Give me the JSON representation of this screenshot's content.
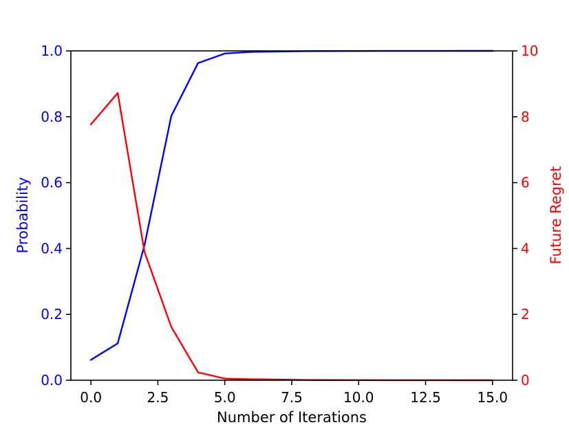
{
  "chart_data": {
    "type": "line",
    "xlabel": "Number of Iterations",
    "ylabel_left": "Probability",
    "ylabel_right": "Future Regret",
    "xlim": [
      -0.75,
      15.75
    ],
    "ylim_left": [
      0,
      1.0
    ],
    "ylim_right": [
      0,
      10
    ],
    "x_ticks": [
      0,
      2.5,
      5,
      7.5,
      10,
      12.5,
      15
    ],
    "x_tick_labels": [
      "0.0",
      "2.5",
      "5.0",
      "7.5",
      "10.0",
      "12.5",
      "15.0"
    ],
    "y_left_ticks": [
      0,
      0.2,
      0.4,
      0.6,
      0.8,
      1.0
    ],
    "y_left_tick_labels": [
      "0.0",
      "0.2",
      "0.4",
      "0.6",
      "0.8",
      "1.0"
    ],
    "y_right_ticks": [
      0,
      2,
      4,
      6,
      8,
      10
    ],
    "y_right_tick_labels": [
      "0",
      "2",
      "4",
      "6",
      "8",
      "10"
    ],
    "colors": {
      "left": "#0000ff",
      "right": "#ff0000"
    },
    "grid": false,
    "series": [
      {
        "axis": "left",
        "color": "#0000ff",
        "x": [
          0,
          1,
          2,
          3,
          4,
          5,
          6,
          7,
          8,
          9,
          10,
          11,
          12,
          13,
          14,
          15
        ],
        "values": [
          0.062,
          0.112,
          0.41,
          0.802,
          0.963,
          0.992,
          0.997,
          0.998,
          0.999,
          0.9995,
          0.9997,
          0.9998,
          0.9999,
          0.9999,
          1.0,
          1.0
        ]
      },
      {
        "axis": "right",
        "color": "#ff0000",
        "x": [
          0,
          1,
          2,
          3,
          4,
          5,
          6,
          7,
          8,
          9,
          10,
          11,
          12,
          13,
          14,
          15
        ],
        "values": [
          7.77,
          8.72,
          3.9,
          1.62,
          0.24,
          0.05,
          0.03,
          0.02,
          0.01,
          0.005,
          0.003,
          0.002,
          0.001,
          0.001,
          0.0,
          0.0
        ]
      }
    ]
  }
}
